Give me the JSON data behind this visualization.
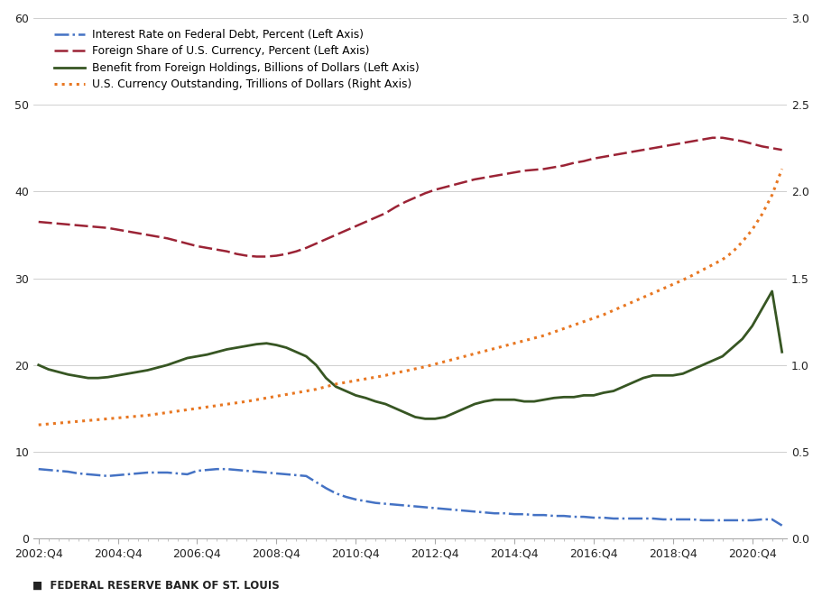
{
  "xlim_quarters": [
    0,
    76
  ],
  "ylim_left": [
    0,
    60
  ],
  "ylim_right": [
    0.0,
    3.0
  ],
  "x_tick_labels": [
    "2002:Q4",
    "2004:Q4",
    "2006:Q4",
    "2008:Q4",
    "2010:Q4",
    "2012:Q4",
    "2014:Q4",
    "2016:Q4",
    "2018:Q4",
    "2020:Q4"
  ],
  "x_tick_positions": [
    0,
    8,
    16,
    24,
    32,
    40,
    48,
    56,
    64,
    72
  ],
  "yticks_left": [
    0,
    10,
    20,
    30,
    40,
    50,
    60
  ],
  "yticks_right": [
    0.0,
    0.5,
    1.0,
    1.5,
    2.0,
    2.5,
    3.0
  ],
  "background_color": "#ffffff",
  "grid_color": "#c8c8c8",
  "source_text": "FEDERAL RESERVE BANK OF ST. LOUIS",
  "series": {
    "interest_rate": {
      "label": "Interest Rate on Federal Debt, Percent (Left Axis)",
      "color": "#4472C4",
      "linewidth": 1.8,
      "values": [
        8.0,
        7.9,
        7.8,
        7.7,
        7.5,
        7.4,
        7.3,
        7.2,
        7.3,
        7.4,
        7.5,
        7.6,
        7.6,
        7.6,
        7.5,
        7.4,
        7.8,
        7.9,
        8.0,
        8.0,
        7.9,
        7.8,
        7.7,
        7.6,
        7.5,
        7.4,
        7.3,
        7.2,
        6.5,
        5.8,
        5.2,
        4.8,
        4.5,
        4.3,
        4.1,
        4.0,
        3.9,
        3.8,
        3.7,
        3.6,
        3.5,
        3.4,
        3.3,
        3.2,
        3.1,
        3.0,
        2.9,
        2.9,
        2.8,
        2.8,
        2.7,
        2.7,
        2.6,
        2.6,
        2.5,
        2.5,
        2.4,
        2.4,
        2.3,
        2.3,
        2.3,
        2.3,
        2.3,
        2.2,
        2.2,
        2.2,
        2.2,
        2.1,
        2.1,
        2.1,
        2.1,
        2.1,
        2.1,
        2.2,
        2.2,
        1.5
      ]
    },
    "foreign_share": {
      "label": "Foreign Share of U.S. Currency, Percent (Left Axis)",
      "color": "#9B2335",
      "linewidth": 1.8,
      "values": [
        36.5,
        36.4,
        36.3,
        36.2,
        36.1,
        36.0,
        35.9,
        35.8,
        35.6,
        35.4,
        35.2,
        35.0,
        34.8,
        34.6,
        34.3,
        34.0,
        33.7,
        33.5,
        33.3,
        33.1,
        32.8,
        32.6,
        32.5,
        32.5,
        32.6,
        32.8,
        33.1,
        33.5,
        34.0,
        34.5,
        35.0,
        35.5,
        36.0,
        36.5,
        37.0,
        37.5,
        38.2,
        38.8,
        39.3,
        39.8,
        40.2,
        40.5,
        40.8,
        41.1,
        41.4,
        41.6,
        41.8,
        42.0,
        42.2,
        42.4,
        42.5,
        42.6,
        42.8,
        43.0,
        43.3,
        43.5,
        43.8,
        44.0,
        44.2,
        44.4,
        44.6,
        44.8,
        45.0,
        45.2,
        45.4,
        45.6,
        45.8,
        46.0,
        46.2,
        46.2,
        46.0,
        45.8,
        45.5,
        45.2,
        45.0,
        44.8
      ]
    },
    "benefit": {
      "label": "Benefit from Foreign Holdings, Billions of Dollars (Left Axis)",
      "color": "#375623",
      "linewidth": 2.0,
      "values": [
        20.0,
        19.5,
        19.2,
        18.9,
        18.7,
        18.5,
        18.5,
        18.6,
        18.8,
        19.0,
        19.2,
        19.4,
        19.7,
        20.0,
        20.4,
        20.8,
        21.0,
        21.2,
        21.5,
        21.8,
        22.0,
        22.2,
        22.4,
        22.5,
        22.3,
        22.0,
        21.5,
        21.0,
        20.0,
        18.5,
        17.5,
        17.0,
        16.5,
        16.2,
        15.8,
        15.5,
        15.0,
        14.5,
        14.0,
        13.8,
        13.8,
        14.0,
        14.5,
        15.0,
        15.5,
        15.8,
        16.0,
        16.0,
        16.0,
        15.8,
        15.8,
        16.0,
        16.2,
        16.3,
        16.3,
        16.5,
        16.5,
        16.8,
        17.0,
        17.5,
        18.0,
        18.5,
        18.8,
        18.8,
        18.8,
        19.0,
        19.5,
        20.0,
        20.5,
        21.0,
        22.0,
        23.0,
        24.5,
        26.5,
        28.5,
        21.5
      ]
    },
    "currency_outstanding": {
      "label": "U.S. Currency Outstanding, Trillions of Dollars (Right Axis)",
      "color": "#E87722",
      "linewidth": 2.2,
      "values": [
        0.655,
        0.66,
        0.665,
        0.67,
        0.675,
        0.68,
        0.685,
        0.69,
        0.695,
        0.7,
        0.705,
        0.71,
        0.718,
        0.726,
        0.734,
        0.742,
        0.75,
        0.758,
        0.766,
        0.774,
        0.782,
        0.79,
        0.8,
        0.81,
        0.82,
        0.83,
        0.84,
        0.85,
        0.86,
        0.875,
        0.89,
        0.9,
        0.91,
        0.92,
        0.93,
        0.94,
        0.955,
        0.965,
        0.978,
        0.99,
        1.005,
        1.02,
        1.035,
        1.05,
        1.065,
        1.08,
        1.095,
        1.11,
        1.125,
        1.14,
        1.155,
        1.17,
        1.19,
        1.21,
        1.23,
        1.25,
        1.27,
        1.29,
        1.315,
        1.34,
        1.365,
        1.39,
        1.415,
        1.44,
        1.465,
        1.49,
        1.518,
        1.548,
        1.578,
        1.608,
        1.65,
        1.71,
        1.78,
        1.87,
        1.98,
        2.13
      ]
    }
  }
}
